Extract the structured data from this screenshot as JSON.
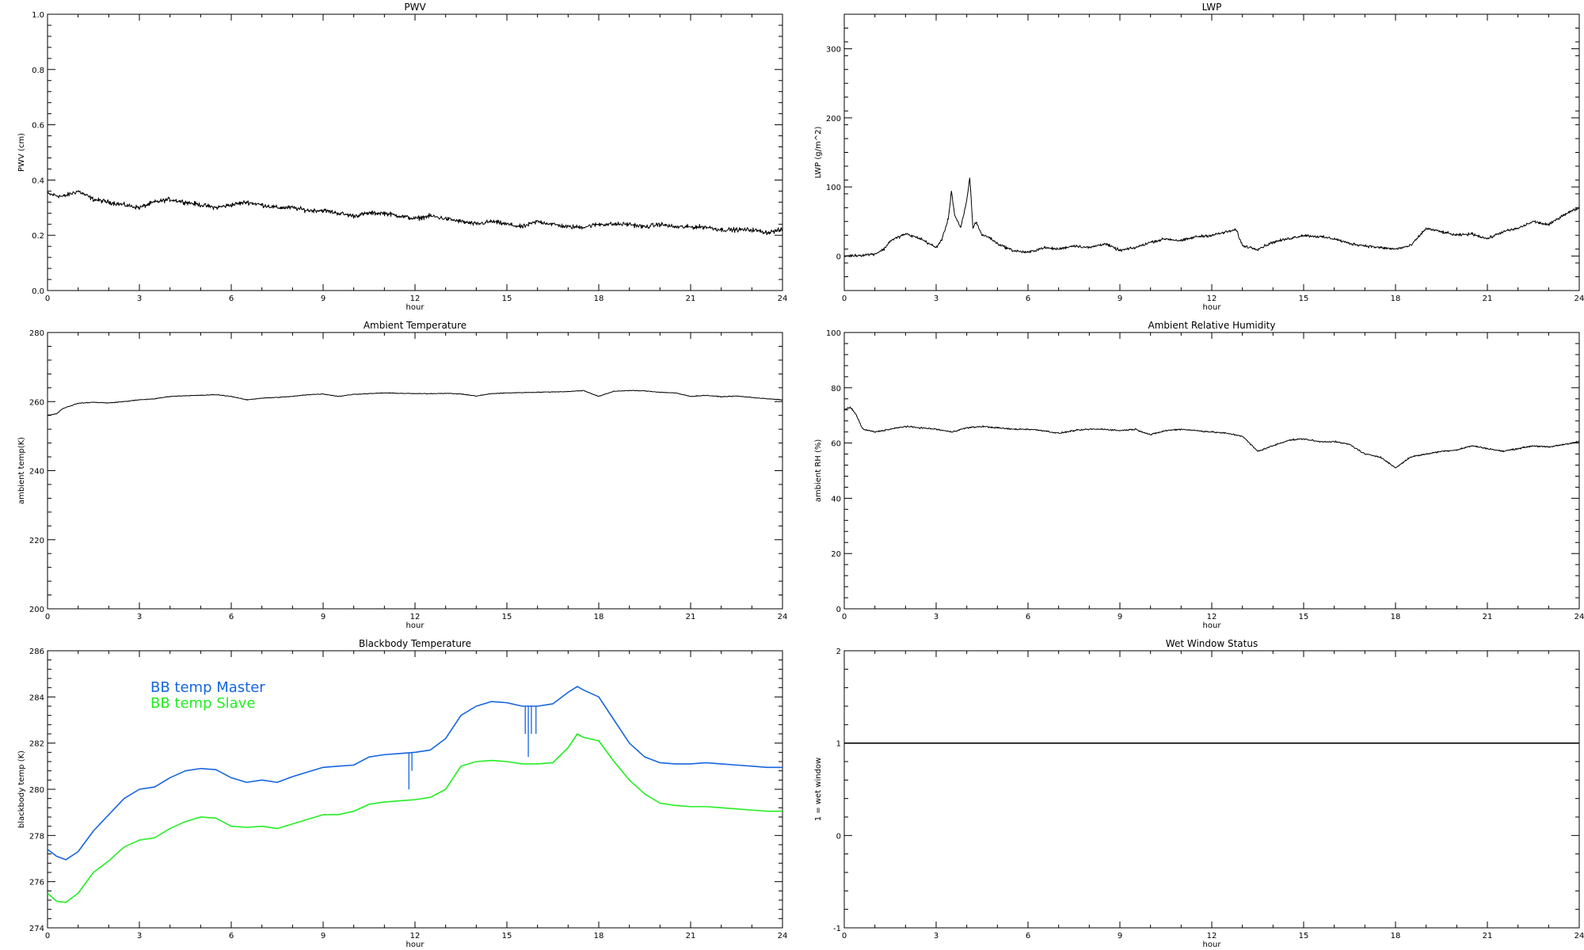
{
  "colors": {
    "frame": "#000000",
    "trace": "#000000",
    "bb_master": "#1565e0",
    "bb_slave": "#22ee22"
  },
  "chart_data": [
    {
      "id": "pwv",
      "type": "line",
      "title": "PWV",
      "xlabel": "hour",
      "ylabel": "PWV (cm)",
      "xlim": [
        0,
        24
      ],
      "ylim": [
        0,
        1
      ],
      "xticks": [
        0,
        3,
        6,
        9,
        12,
        15,
        18,
        21,
        24
      ],
      "xtick_labels": [
        "0",
        "3",
        "6",
        "9",
        "12",
        "15",
        "18",
        "21",
        "24"
      ],
      "yticks": [
        0,
        0.2,
        0.4,
        0.6,
        0.8,
        1.0
      ],
      "ytick_labels": [
        "0.0",
        "0.2",
        "0.4",
        "0.6",
        "0.8",
        "1.0"
      ],
      "series": [
        {
          "color": "#000000",
          "noise": 0.012,
          "x": [
            0,
            0.5,
            1,
            1.5,
            2,
            2.5,
            3,
            3.5,
            4,
            4.5,
            5,
            5.5,
            6,
            6.5,
            7,
            7.5,
            8,
            8.5,
            9,
            9.5,
            10,
            10.5,
            11,
            11.5,
            12,
            12.5,
            13,
            13.5,
            14,
            14.5,
            15,
            15.5,
            16,
            16.5,
            17,
            17.5,
            18,
            18.5,
            19,
            19.5,
            20,
            20.5,
            21,
            21.5,
            22,
            22.5,
            23,
            23.5,
            24
          ],
          "y": [
            0.35,
            0.34,
            0.36,
            0.33,
            0.32,
            0.31,
            0.3,
            0.32,
            0.33,
            0.32,
            0.31,
            0.3,
            0.31,
            0.32,
            0.31,
            0.3,
            0.3,
            0.29,
            0.29,
            0.28,
            0.27,
            0.28,
            0.28,
            0.27,
            0.26,
            0.27,
            0.26,
            0.25,
            0.24,
            0.25,
            0.24,
            0.23,
            0.25,
            0.24,
            0.23,
            0.23,
            0.24,
            0.24,
            0.24,
            0.23,
            0.24,
            0.23,
            0.23,
            0.23,
            0.22,
            0.22,
            0.22,
            0.21,
            0.22
          ]
        }
      ]
    },
    {
      "id": "lwp",
      "type": "line",
      "title": "LWP",
      "xlabel": "hour",
      "ylabel": "LWP (g/m^2)",
      "xlim": [
        0,
        24
      ],
      "ylim": [
        -50,
        350
      ],
      "xticks": [
        0,
        3,
        6,
        9,
        12,
        15,
        18,
        21,
        24
      ],
      "xtick_labels": [
        "0",
        "3",
        "6",
        "9",
        "12",
        "15",
        "18",
        "21",
        "24"
      ],
      "yticks": [
        0,
        100,
        200,
        300
      ],
      "ytick_labels": [
        "0",
        "100",
        "200",
        "300"
      ],
      "series": [
        {
          "color": "#000000",
          "noise": 3,
          "x": [
            0,
            0.5,
            1,
            1.3,
            1.5,
            2,
            2.5,
            3,
            3.2,
            3.4,
            3.5,
            3.6,
            3.8,
            4,
            4.1,
            4.2,
            4.3,
            4.5,
            4.7,
            5,
            5.5,
            6,
            6.5,
            7,
            7.5,
            8,
            8.5,
            9,
            9.5,
            10,
            10.5,
            11,
            11.5,
            12,
            12.5,
            12.8,
            13,
            13.5,
            14,
            14.5,
            15,
            15.5,
            16,
            16.5,
            17,
            17.5,
            18,
            18.5,
            19,
            19.5,
            20,
            20.5,
            21,
            21.5,
            22,
            22.5,
            23,
            23.5,
            24
          ],
          "y": [
            0,
            1,
            3,
            10,
            22,
            32,
            25,
            12,
            25,
            55,
            95,
            60,
            40,
            80,
            115,
            40,
            50,
            30,
            28,
            18,
            8,
            5,
            12,
            10,
            15,
            12,
            18,
            8,
            12,
            20,
            25,
            22,
            28,
            30,
            35,
            38,
            15,
            10,
            20,
            25,
            30,
            28,
            25,
            18,
            15,
            12,
            10,
            15,
            40,
            35,
            30,
            32,
            25,
            35,
            40,
            50,
            45,
            60,
            70
          ]
        }
      ]
    },
    {
      "id": "ambient_temp",
      "type": "line",
      "title": "Ambient Temperature",
      "xlabel": "hour",
      "ylabel": "ambient temp(K)",
      "xlim": [
        0,
        24
      ],
      "ylim": [
        200,
        280
      ],
      "xticks": [
        0,
        3,
        6,
        9,
        12,
        15,
        18,
        21,
        24
      ],
      "xtick_labels": [
        "0",
        "3",
        "6",
        "9",
        "12",
        "15",
        "18",
        "21",
        "24"
      ],
      "yticks": [
        200,
        220,
        240,
        260,
        280
      ],
      "ytick_labels": [
        "200",
        "220",
        "240",
        "260",
        "280"
      ],
      "series": [
        {
          "color": "#000000",
          "noise": 0.15,
          "x": [
            0,
            0.3,
            0.5,
            1,
            1.5,
            2,
            2.5,
            3,
            3.5,
            4,
            4.5,
            5,
            5.5,
            6,
            6.5,
            7,
            7.5,
            8,
            8.5,
            9,
            9.5,
            10,
            10.5,
            11,
            11.5,
            12,
            12.5,
            13,
            13.5,
            14,
            14.5,
            15,
            15.5,
            16,
            16.5,
            17,
            17.5,
            18,
            18.5,
            19,
            19.5,
            20,
            20.5,
            21,
            21.5,
            22,
            22.5,
            23,
            23.5,
            24
          ],
          "y": [
            256,
            256.5,
            258,
            259.5,
            259.8,
            259.6,
            260,
            260.5,
            260.8,
            261.5,
            261.7,
            261.8,
            262,
            261.5,
            260.5,
            261,
            261.2,
            261.5,
            262,
            262.2,
            261.5,
            262.1,
            262.3,
            262.5,
            262.4,
            262.3,
            262.3,
            262.4,
            262.2,
            261.6,
            262.3,
            262.5,
            262.6,
            262.7,
            262.8,
            262.9,
            263.2,
            261.5,
            263,
            263.2,
            263.1,
            262.7,
            262.5,
            261.5,
            261.8,
            261.4,
            261.6,
            261.2,
            260.8,
            260.5
          ]
        }
      ]
    },
    {
      "id": "ambient_rh",
      "type": "line",
      "title": "Ambient Relative Humidity",
      "xlabel": "hour",
      "ylabel": "ambient RH (%)",
      "xlim": [
        0,
        24
      ],
      "ylim": [
        0,
        100
      ],
      "xticks": [
        0,
        3,
        6,
        9,
        12,
        15,
        18,
        21,
        24
      ],
      "xtick_labels": [
        "0",
        "3",
        "6",
        "9",
        "12",
        "15",
        "18",
        "21",
        "24"
      ],
      "yticks": [
        0,
        20,
        40,
        60,
        80,
        100
      ],
      "ytick_labels": [
        "0",
        "20",
        "40",
        "60",
        "80",
        "100"
      ],
      "series": [
        {
          "color": "#000000",
          "noise": 0.4,
          "x": [
            0,
            0.2,
            0.4,
            0.6,
            0.8,
            1,
            1.5,
            2,
            2.5,
            3,
            3.5,
            4,
            4.5,
            5,
            5.5,
            6,
            6.5,
            7,
            7.5,
            8,
            8.5,
            9,
            9.5,
            10,
            10.5,
            11,
            11.5,
            12,
            12.5,
            13,
            13.5,
            14,
            14.5,
            15,
            15.5,
            16,
            16.5,
            17,
            17.5,
            18,
            18.5,
            19,
            19.5,
            20,
            20.5,
            21,
            21.5,
            22,
            22.5,
            23,
            23.5,
            24
          ],
          "y": [
            72,
            73,
            70,
            65,
            64.5,
            64,
            65,
            66,
            65.5,
            65,
            64,
            65.5,
            66,
            65.5,
            65,
            65,
            64.5,
            63.5,
            64.5,
            65,
            65,
            64.5,
            65,
            63,
            64.5,
            65,
            64.5,
            64,
            63.5,
            62.5,
            57,
            59,
            61,
            61.5,
            60.5,
            60.5,
            59.5,
            56,
            55,
            51,
            55,
            56,
            57,
            57.5,
            59,
            58,
            57,
            58,
            59,
            58.5,
            59.5,
            60.5
          ]
        }
      ]
    },
    {
      "id": "blackbody_temp",
      "type": "line",
      "title": "Blackbody Temperature",
      "xlabel": "hour",
      "ylabel": "blackbody temp (K)",
      "xlim": [
        0,
        24
      ],
      "ylim": [
        274,
        286
      ],
      "xticks": [
        0,
        3,
        6,
        9,
        12,
        15,
        18,
        21,
        24
      ],
      "xtick_labels": [
        "0",
        "3",
        "6",
        "9",
        "12",
        "15",
        "18",
        "21",
        "24"
      ],
      "yticks": [
        274,
        276,
        278,
        280,
        282,
        284,
        286
      ],
      "ytick_labels": [
        "274",
        "276",
        "278",
        "280",
        "282",
        "284",
        "286"
      ],
      "legend": [
        "BB temp Master",
        "BB temp Slave"
      ],
      "series": [
        {
          "name": "BB temp Master",
          "color": "#1565e0",
          "noise": 0,
          "x": [
            0,
            0.3,
            0.6,
            1,
            1.5,
            2,
            2.5,
            3,
            3.5,
            4,
            4.5,
            5,
            5.5,
            6,
            6.5,
            7,
            7.5,
            8,
            8.5,
            9,
            9.5,
            10,
            10.5,
            11,
            11.5,
            12,
            12.5,
            13,
            13.5,
            14,
            14.5,
            15,
            15.5,
            16,
            16.5,
            17,
            17.3,
            17.5,
            18,
            18.5,
            19,
            19.5,
            20,
            20.5,
            21,
            21.5,
            22,
            22.5,
            23,
            23.5,
            24
          ],
          "y": [
            277.4,
            277.1,
            276.95,
            277.3,
            278.2,
            278.9,
            279.6,
            280,
            280.1,
            280.5,
            280.8,
            280.9,
            280.85,
            280.5,
            280.3,
            280.4,
            280.3,
            280.55,
            280.75,
            280.95,
            281,
            281.05,
            281.4,
            281.5,
            281.55,
            281.6,
            281.7,
            282.2,
            283.2,
            283.6,
            283.8,
            283.75,
            283.6,
            283.6,
            283.7,
            284.2,
            284.45,
            284.3,
            284,
            283,
            282,
            281.4,
            281.15,
            281.1,
            281.1,
            281.15,
            281.1,
            281.05,
            281,
            280.95,
            280.95
          ],
          "spikes": [
            {
              "x": 11.8,
              "y": 280.0
            },
            {
              "x": 11.9,
              "y": 280.8
            },
            {
              "x": 15.6,
              "y": 282.4
            },
            {
              "x": 15.7,
              "y": 281.4
            },
            {
              "x": 15.8,
              "y": 282.4
            },
            {
              "x": 15.95,
              "y": 282.4
            }
          ]
        },
        {
          "name": "BB temp Slave",
          "color": "#22ee22",
          "noise": 0,
          "x": [
            0,
            0.3,
            0.6,
            1,
            1.5,
            2,
            2.5,
            3,
            3.5,
            4,
            4.5,
            5,
            5.5,
            6,
            6.5,
            7,
            7.5,
            8,
            8.5,
            9,
            9.5,
            10,
            10.5,
            11,
            11.5,
            12,
            12.5,
            13,
            13.5,
            14,
            14.5,
            15,
            15.5,
            16,
            16.5,
            17,
            17.3,
            17.5,
            18,
            18.5,
            19,
            19.5,
            20,
            20.5,
            21,
            21.5,
            22,
            22.5,
            23,
            23.5,
            24
          ],
          "y": [
            275.5,
            275.15,
            275.1,
            275.5,
            276.4,
            276.9,
            277.5,
            277.8,
            277.9,
            278.3,
            278.6,
            278.8,
            278.75,
            278.4,
            278.35,
            278.4,
            278.3,
            278.5,
            278.7,
            278.9,
            278.9,
            279.05,
            279.35,
            279.45,
            279.5,
            279.55,
            279.65,
            280,
            281,
            281.2,
            281.25,
            281.2,
            281.1,
            281.1,
            281.15,
            281.8,
            282.4,
            282.25,
            282.1,
            281.2,
            280.4,
            279.8,
            279.4,
            279.3,
            279.25,
            279.25,
            279.2,
            279.15,
            279.1,
            279.05,
            279.05
          ]
        }
      ]
    },
    {
      "id": "wet_window",
      "type": "line",
      "title": "Wet Window Status",
      "xlabel": "hour",
      "ylabel": "1 = wet window",
      "xlim": [
        0,
        24
      ],
      "ylim": [
        -1,
        2
      ],
      "xticks": [
        0,
        3,
        6,
        9,
        12,
        15,
        18,
        21,
        24
      ],
      "xtick_labels": [
        "0",
        "3",
        "6",
        "9",
        "12",
        "15",
        "18",
        "21",
        "24"
      ],
      "yticks": [
        -1,
        0,
        1,
        2
      ],
      "ytick_labels": [
        "-1",
        "0",
        "1",
        "2"
      ],
      "series": [
        {
          "color": "#000000",
          "noise": 0,
          "x": [
            0,
            24
          ],
          "y": [
            1,
            1
          ]
        }
      ]
    }
  ]
}
